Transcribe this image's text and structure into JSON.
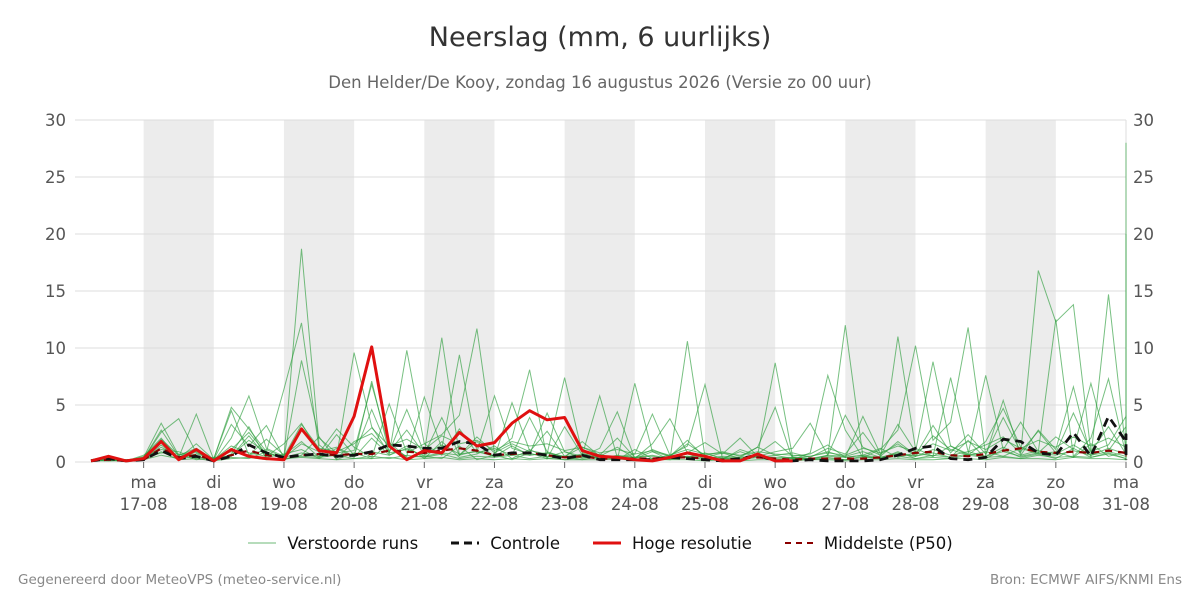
{
  "title": "Neerslag (mm, 6 uurlijks)",
  "subtitle": "Den Helder/De Kooy, zondag 16 augustus 2026 (Versie zo 00 uur)",
  "footer_left": "Gegenereerd door MeteoVPS (meteo-service.nl)",
  "footer_right": "Bron: ECMWF AIFS/KNMI Ens",
  "colors": {
    "ensemble": "#2e9e3e",
    "control": "#111111",
    "high_res": "#e01010",
    "median": "#8b0000",
    "weekend_band": "#ececec",
    "grid": "#dddddd"
  },
  "legend": [
    {
      "label": "Verstoorde runs",
      "key": "ensemble"
    },
    {
      "label": "Controle",
      "key": "control"
    },
    {
      "label": "Hoge resolutie",
      "key": "high_res"
    },
    {
      "label": "Middelste (P50)",
      "key": "median"
    }
  ],
  "chart_data": {
    "type": "line",
    "y_unit": "mm per 6 uur",
    "ylim": [
      0,
      30
    ],
    "y_ticks": [
      0,
      5,
      10,
      15,
      20,
      25,
      30
    ],
    "y_axes": "left-and-right",
    "grid": true,
    "legend_position": "bottom",
    "x_start": "2026-08-16 06:00",
    "x_end": "2026-08-31 00:00",
    "x_ticks": [
      {
        "day": "ma",
        "date": "17-08"
      },
      {
        "day": "di",
        "date": "18-08"
      },
      {
        "day": "wo",
        "date": "19-08"
      },
      {
        "day": "do",
        "date": "20-08"
      },
      {
        "day": "vr",
        "date": "21-08"
      },
      {
        "day": "za",
        "date": "22-08"
      },
      {
        "day": "zo",
        "date": "23-08"
      },
      {
        "day": "ma",
        "date": "24-08"
      },
      {
        "day": "di",
        "date": "25-08"
      },
      {
        "day": "wo",
        "date": "26-08"
      },
      {
        "day": "do",
        "date": "27-08"
      },
      {
        "day": "vr",
        "date": "28-08"
      },
      {
        "day": "za",
        "date": "29-08"
      },
      {
        "day": "zo",
        "date": "30-08"
      },
      {
        "day": "ma",
        "date": "31-08"
      }
    ],
    "shaded_days": [
      "17-08",
      "19-08",
      "21-08",
      "23-08",
      "25-08",
      "27-08",
      "29-08"
    ],
    "series": [
      {
        "name": "Hoge resolutie",
        "key": "high_res",
        "values": [
          0.1,
          0.5,
          0.1,
          0.3,
          1.8,
          0.2,
          1.1,
          0.1,
          1.1,
          0.5,
          0.3,
          0.2,
          2.9,
          1.0,
          0.8,
          4.0,
          10.1,
          1.4,
          0.2,
          1.0,
          0.8,
          2.6,
          1.4,
          1.7,
          3.4,
          4.5,
          3.7,
          3.9,
          1.0,
          0.5,
          0.4,
          0.2,
          0.1,
          0.4,
          0.8,
          0.5,
          0.1,
          0.1,
          0.7,
          0.1,
          0.1
        ]
      },
      {
        "name": "Controle",
        "key": "control",
        "values": [
          0.1,
          0.3,
          0.1,
          0.2,
          1.0,
          0.3,
          0.5,
          0.1,
          0.5,
          1.5,
          0.8,
          0.4,
          0.6,
          0.7,
          0.5,
          0.6,
          0.9,
          1.5,
          1.4,
          1.2,
          1.2,
          1.8,
          1.6,
          0.6,
          0.8,
          0.8,
          0.6,
          0.3,
          0.6,
          0.2,
          0.2,
          0.2,
          0.2,
          0.4,
          0.3,
          0.2,
          0.1,
          0.3,
          0.6,
          0.1,
          0.1,
          0.2,
          0.1,
          0.1,
          0.1,
          0.2,
          0.6,
          1.2,
          1.4,
          0.3,
          0.2,
          0.4,
          2.0,
          1.8,
          0.8,
          0.6,
          2.6,
          0.5,
          4.0,
          1.8,
          0.4,
          2.4,
          0.5,
          0.2
        ]
      },
      {
        "name": "Middelste (P50)",
        "key": "median",
        "values": [
          0.1,
          0.2,
          0.1,
          0.2,
          1.2,
          0.4,
          0.6,
          0.2,
          0.6,
          1.0,
          0.6,
          0.4,
          0.6,
          0.7,
          0.6,
          0.7,
          0.7,
          1.0,
          0.9,
          0.8,
          1.0,
          1.2,
          1.0,
          0.6,
          0.7,
          0.8,
          0.6,
          0.4,
          0.5,
          0.3,
          0.3,
          0.3,
          0.3,
          0.4,
          0.4,
          0.3,
          0.2,
          0.3,
          0.4,
          0.3,
          0.2,
          0.3,
          0.3,
          0.3,
          0.3,
          0.4,
          0.6,
          0.8,
          0.9,
          0.6,
          0.5,
          0.7,
          1.0,
          1.2,
          0.9,
          0.8,
          0.9,
          0.8,
          1.0,
          0.8,
          0.6,
          0.7,
          0.6,
          0.5
        ]
      },
      {
        "name": "Verstoorde runs",
        "key": "ensemble",
        "members": [
          [
            0.2,
            0.5,
            0.1,
            0.4,
            3.4,
            0.6,
            1.0,
            0.1,
            2.1,
            5.8,
            1.2,
            0.5,
            18.7,
            1.5,
            0.3,
            1.8,
            2.5,
            0.9,
            4.6,
            0.8,
            10.9,
            0.6,
            1.8,
            0.4,
            5.2,
            1.0,
            0.7,
            7.4,
            0.8,
            0.3,
            0.2,
            6.9,
            0.9,
            0.2,
            10.6,
            0.5,
            0.2,
            1.1,
            0.6,
            8.7,
            0.4,
            0.2,
            0.6,
            12.0,
            0.5,
            0.3,
            11.0,
            1.2,
            0.5,
            7.4,
            0.9,
            1.5,
            2.2,
            0.8,
            16.8,
            12.3,
            13.8,
            0.9,
            1.5,
            4.0,
            28.0,
            1.2,
            6.6,
            0.4
          ],
          [
            0.1,
            0.3,
            0.2,
            0.3,
            2.6,
            3.8,
            0.8,
            0.3,
            4.8,
            2.9,
            0.9,
            6.4,
            12.2,
            1.1,
            0.5,
            9.6,
            3.1,
            0.7,
            9.8,
            1.6,
            2.4,
            4.1,
            11.7,
            0.8,
            2.1,
            8.1,
            0.3,
            3.1,
            0.6,
            5.8,
            0.4,
            0.7,
            4.2,
            0.6,
            1.4,
            6.8,
            0.3,
            0.4,
            1.3,
            4.8,
            0.2,
            0.8,
            7.6,
            2.8,
            0.4,
            1.1,
            2.8,
            10.2,
            1.9,
            3.5,
            11.8,
            0.6,
            5.4,
            0.6,
            2.8,
            1.1,
            6.6,
            0.4,
            14.7,
            0.9,
            13.7,
            0.8,
            2.4,
            20.0
          ],
          [
            0.2,
            0.4,
            0.1,
            0.6,
            1.7,
            0.4,
            4.2,
            0.2,
            3.3,
            1.4,
            3.2,
            0.4,
            8.9,
            2.1,
            0.8,
            1.0,
            6.8,
            1.3,
            0.5,
            5.7,
            1.2,
            9.4,
            0.9,
            5.8,
            1.2,
            0.7,
            4.3,
            0.9,
            0.5,
            1.2,
            4.4,
            0.3,
            1.6,
            3.8,
            0.8,
            1.7,
            0.7,
            2.1,
            0.5,
            0.9,
            1.2,
            3.4,
            0.6,
            4.1,
            1.3,
            0.6,
            3.3,
            0.9,
            8.8,
            1.4,
            0.7,
            7.6,
            1.1,
            3.5,
            0.9,
            12.5,
            0.5,
            2.1,
            7.3,
            0.6,
            4.1,
            0.7,
            0.3,
            1.3
          ],
          [
            0.1,
            0.2,
            0.1,
            0.5,
            2.1,
            0.3,
            1.6,
            0.2,
            1.4,
            0.8,
            0.5,
            1.6,
            3.4,
            0.8,
            2.9,
            1.3,
            0.4,
            5.1,
            0.8,
            1.6,
            0.6,
            2.9,
            0.8,
            1.2,
            0.6,
            3.9,
            0.9,
            0.4,
            1.8,
            0.5,
            1.3,
            0.3,
            0.9,
            0.5,
            1.9,
            0.4,
            0.8,
            0.3,
            0.7,
            1.8,
            0.5,
            0.7,
            1.5,
            0.4,
            4.0,
            0.7,
            1.6,
            0.5,
            2.3,
            1.1,
            0.6,
            1.8,
            4.7,
            1.3,
            0.8,
            2.2,
            1.1,
            6.9,
            1.0,
            3.1,
            0.8,
            1.8,
            0.5,
            1.0
          ],
          [
            0.2,
            0.3,
            0.2,
            0.3,
            0.8,
            0.7,
            0.2,
            0.4,
            0.5,
            2.3,
            0.4,
            0.7,
            1.1,
            0.3,
            1.2,
            0.4,
            2.1,
            0.6,
            1.4,
            0.3,
            1.8,
            0.4,
            0.7,
            1.4,
            0.3,
            1.1,
            0.4,
            0.9,
            0.3,
            0.7,
            0.2,
            1.1,
            0.3,
            0.6,
            0.4,
            0.8,
            0.3,
            0.9,
            0.4,
            0.6,
            0.3,
            0.5,
            0.9,
            0.4,
            0.6,
            1.2,
            0.4,
            0.8,
            0.5,
            1.4,
            0.6,
            0.9,
            0.5,
            1.2,
            0.7,
            0.9,
            0.4,
            1.6,
            0.5,
            0.9,
            0.6,
            0.8,
            0.4,
            0.6
          ],
          [
            0.1,
            0.4,
            0.1,
            0.2,
            1.5,
            0.2,
            0.9,
            0.1,
            0.7,
            3.1,
            0.3,
            0.2,
            0.6,
            2.2,
            0.2,
            0.8,
            0.3,
            1.7,
            0.4,
            0.5,
            0.3,
            1.4,
            0.2,
            0.6,
            0.2,
            0.8,
            0.3,
            0.4,
            0.2,
            0.5,
            0.2,
            0.4,
            0.2,
            0.3,
            0.5,
            0.2,
            0.3,
            0.2,
            0.6,
            0.2,
            0.3,
            0.2,
            0.4,
            0.2,
            0.5,
            0.3,
            0.9,
            0.3,
            0.6,
            0.4,
            1.9,
            0.3,
            1.1,
            0.4,
            0.7,
            0.3,
            1.2,
            0.4,
            0.8,
            0.3,
            0.6,
            0.4,
            0.3,
            0.5
          ],
          [
            0.2,
            0.1,
            0.1,
            0.3,
            2.8,
            0.5,
            0.4,
            0.3,
            4.5,
            0.6,
            2.0,
            0.6,
            1.8,
            0.4,
            2.4,
            0.6,
            4.6,
            0.9,
            2.8,
            0.7,
            3.9,
            0.6,
            2.2,
            0.8,
            1.6,
            0.9,
            2.7,
            0.5,
            1.3,
            0.6,
            2.1,
            0.4,
            1.1,
            0.5,
            1.6,
            0.6,
            0.9,
            0.5,
            1.3,
            0.6,
            0.8,
            0.4,
            1.2,
            0.7,
            2.6,
            0.5,
            1.8,
            0.6,
            3.2,
            0.8,
            2.4,
            0.7,
            3.9,
            0.9,
            2.7,
            0.8,
            4.3,
            0.9,
            3.1,
            0.7,
            2.5,
            0.8,
            1.9,
            0.9
          ],
          [
            0.1,
            0.2,
            0.1,
            0.2,
            0.6,
            0.3,
            0.5,
            0.2,
            0.4,
            0.3,
            0.9,
            0.3,
            0.5,
            0.4,
            0.6,
            0.3,
            0.5,
            0.3,
            0.6,
            0.4,
            0.7,
            0.3,
            0.5,
            0.4,
            0.6,
            0.3,
            0.5,
            0.2,
            0.4,
            0.3,
            0.4,
            0.2,
            0.3,
            0.2,
            0.4,
            0.2,
            0.3,
            0.2,
            0.4,
            0.2,
            0.3,
            0.2,
            0.3,
            0.2,
            0.4,
            0.3,
            0.5,
            0.3,
            0.4,
            0.3,
            0.6,
            0.4,
            0.5,
            0.3,
            0.6,
            0.4,
            0.5,
            0.4,
            0.7,
            0.3,
            0.5,
            0.4,
            0.4,
            0.3
          ],
          [
            0.2,
            0.3,
            0.1,
            0.4,
            1.1,
            0.9,
            0.3,
            0.2,
            0.6,
            1.9,
            0.8,
            0.4,
            1.6,
            0.9,
            1.3,
            0.5,
            7.1,
            0.8,
            1.1,
            0.6,
            1.5,
            0.7,
            0.9,
            0.5,
            1.4,
            0.6,
            0.8,
            0.4,
            0.7,
            0.3,
            0.6,
            0.4,
            0.5,
            0.3,
            0.7,
            0.3,
            0.5,
            0.4,
            0.6,
            0.3,
            0.4,
            0.3,
            0.6,
            0.5,
            0.9,
            0.4,
            0.8,
            0.5,
            1.1,
            0.6,
            0.9,
            0.5,
            1.3,
            0.6,
            1.0,
            0.7,
            1.5,
            0.6,
            1.2,
            0.7,
            1.0,
            0.6,
            0.8,
            0.7
          ],
          [
            0.1,
            0.1,
            0.2,
            0.3,
            1.3,
            0.4,
            0.7,
            0.3,
            0.9,
            0.6,
            1.1,
            0.4,
            0.8,
            0.5,
            0.6,
            0.7,
            0.9,
            0.6,
            1.2,
            0.5,
            0.8,
            0.6,
            1.0,
            0.5,
            0.7,
            0.6,
            0.8,
            0.5,
            0.6,
            0.4,
            0.5,
            0.4,
            0.6,
            0.3,
            0.5,
            0.4,
            0.4,
            0.3,
            0.5,
            0.4,
            0.4,
            0.3,
            0.5,
            0.4,
            0.6,
            0.4,
            0.7,
            0.5,
            0.8,
            0.4,
            0.7,
            0.5,
            0.9,
            0.5,
            0.8,
            0.6,
            1.0,
            0.6,
            0.9,
            0.5,
            0.8,
            0.6,
            0.7,
            0.5
          ],
          [
            0.2,
            0.2,
            0.1,
            0.2,
            0.9,
            0.2,
            0.3,
            0.1,
            0.3,
            0.4,
            0.2,
            0.3,
            0.4,
            0.3,
            0.2,
            0.3,
            0.3,
            0.4,
            0.2,
            0.3,
            0.4,
            0.2,
            0.3,
            0.2,
            0.3,
            0.2,
            0.3,
            0.2,
            0.2,
            0.2,
            0.3,
            0.1,
            0.2,
            0.2,
            0.2,
            0.1,
            0.2,
            0.1,
            0.2,
            0.2,
            0.1,
            0.2,
            0.2,
            0.1,
            0.2,
            0.2,
            0.3,
            0.2,
            0.2,
            0.3,
            0.3,
            0.2,
            0.4,
            0.3,
            0.3,
            0.2,
            0.4,
            0.3,
            0.3,
            0.2,
            0.3,
            0.2,
            0.2,
            0.3
          ],
          [
            0.1,
            0.3,
            0.1,
            0.3,
            2.0,
            0.6,
            1.2,
            0.2,
            1.1,
            2.6,
            0.7,
            0.5,
            3.3,
            1.2,
            0.9,
            1.6,
            3.0,
            1.4,
            2.0,
            1.1,
            2.3,
            1.6,
            1.9,
            1.0,
            1.8,
            1.4,
            1.6,
            1.0,
            1.3,
            0.8,
            1.1,
            0.7,
            1.0,
            0.6,
            1.1,
            0.7,
            0.8,
            0.6,
            0.9,
            0.7,
            0.6,
            0.5,
            0.8,
            0.6,
            1.2,
            0.8,
            1.4,
            0.9,
            1.6,
            1.0,
            1.8,
            1.1,
            2.0,
            1.2,
            1.9,
            1.3,
            2.2,
            1.4,
            2.1,
            1.3,
            1.9,
            1.2,
            1.6,
            1.1
          ]
        ]
      }
    ]
  }
}
